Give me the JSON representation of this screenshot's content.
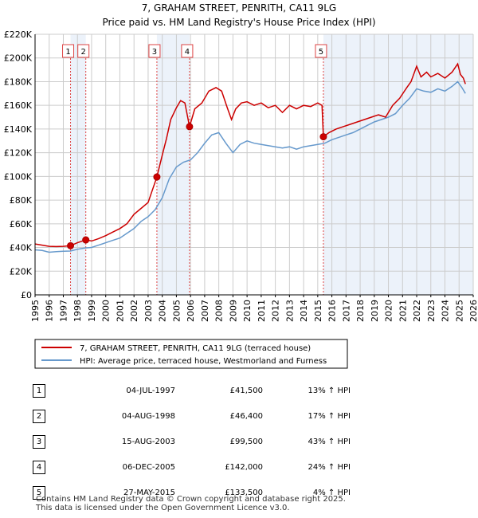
{
  "chart_data": {
    "type": "line",
    "title": "7, GRAHAM STREET, PENRITH, CA11 9LG",
    "subtitle": "Price paid vs. HM Land Registry's House Price Index (HPI)",
    "xlim": [
      1995,
      2026
    ],
    "ylim": [
      0,
      220000
    ],
    "x_ticks": [
      "1995",
      "1996",
      "1997",
      "1998",
      "1999",
      "2000",
      "2001",
      "2002",
      "2003",
      "2004",
      "2005",
      "2006",
      "2007",
      "2008",
      "2009",
      "2010",
      "2011",
      "2012",
      "2013",
      "2014",
      "2015",
      "2016",
      "2017",
      "2018",
      "2019",
      "2020",
      "2021",
      "2022",
      "2023",
      "2024",
      "2025",
      "2026"
    ],
    "y_ticks": [
      {
        "value": 0,
        "label": "£0"
      },
      {
        "value": 20000,
        "label": "£20K"
      },
      {
        "value": 40000,
        "label": "£40K"
      },
      {
        "value": 60000,
        "label": "£60K"
      },
      {
        "value": 80000,
        "label": "£80K"
      },
      {
        "value": 100000,
        "label": "£100K"
      },
      {
        "value": 120000,
        "label": "£120K"
      },
      {
        "value": 140000,
        "label": "£140K"
      },
      {
        "value": 160000,
        "label": "£160K"
      },
      {
        "value": 180000,
        "label": "£180K"
      },
      {
        "value": 200000,
        "label": "£200K"
      },
      {
        "value": 220000,
        "label": "£220K"
      }
    ],
    "grid": true,
    "colors": {
      "property": "#cc0000",
      "hpi": "#6699cc",
      "marker_line": "#dd4444",
      "shade": "#dde8f5",
      "grid": "#cccccc"
    },
    "shaded_periods": [
      [
        1997.51,
        1998.59
      ],
      [
        2003.62,
        2005.93
      ],
      [
        2015.4,
        2026.0
      ]
    ],
    "series": [
      {
        "name": "7, GRAHAM STREET, PENRITH, CA11 9LG (terraced house)",
        "points": [
          [
            1995.0,
            43000
          ],
          [
            1995.5,
            42000
          ],
          [
            1996.0,
            41000
          ],
          [
            1996.5,
            40800
          ],
          [
            1997.0,
            41000
          ],
          [
            1997.51,
            41500
          ],
          [
            1998.0,
            44000
          ],
          [
            1998.59,
            46400
          ],
          [
            1999.0,
            45500
          ],
          [
            1999.5,
            47500
          ],
          [
            2000.0,
            50000
          ],
          [
            2000.5,
            53000
          ],
          [
            2001.0,
            56000
          ],
          [
            2001.5,
            60000
          ],
          [
            2002.0,
            68000
          ],
          [
            2002.5,
            73000
          ],
          [
            2003.0,
            78000
          ],
          [
            2003.62,
            99500
          ],
          [
            2004.0,
            118000
          ],
          [
            2004.3,
            132000
          ],
          [
            2004.6,
            148000
          ],
          [
            2005.0,
            158000
          ],
          [
            2005.3,
            164000
          ],
          [
            2005.6,
            162000
          ],
          [
            2005.93,
            142000
          ],
          [
            2006.3,
            157000
          ],
          [
            2006.8,
            162000
          ],
          [
            2007.3,
            172000
          ],
          [
            2007.8,
            175000
          ],
          [
            2008.2,
            172000
          ],
          [
            2008.6,
            158000
          ],
          [
            2008.9,
            148000
          ],
          [
            2009.2,
            157000
          ],
          [
            2009.6,
            162000
          ],
          [
            2010.0,
            163000
          ],
          [
            2010.5,
            160000
          ],
          [
            2011.0,
            162000
          ],
          [
            2011.5,
            158000
          ],
          [
            2012.0,
            160000
          ],
          [
            2012.5,
            154000
          ],
          [
            2013.0,
            160000
          ],
          [
            2013.5,
            157000
          ],
          [
            2014.0,
            160000
          ],
          [
            2014.5,
            159000
          ],
          [
            2015.0,
            162000
          ],
          [
            2015.3,
            160000
          ],
          [
            2015.4,
            133500
          ],
          [
            2015.8,
            137000
          ],
          [
            2016.3,
            140000
          ],
          [
            2016.8,
            142000
          ],
          [
            2017.3,
            144000
          ],
          [
            2017.8,
            146000
          ],
          [
            2018.3,
            148000
          ],
          [
            2018.8,
            150000
          ],
          [
            2019.3,
            152000
          ],
          [
            2019.8,
            150000
          ],
          [
            2020.3,
            160000
          ],
          [
            2020.8,
            166000
          ],
          [
            2021.3,
            175000
          ],
          [
            2021.6,
            180000
          ],
          [
            2022.0,
            193000
          ],
          [
            2022.3,
            184000
          ],
          [
            2022.7,
            188000
          ],
          [
            2023.0,
            184000
          ],
          [
            2023.5,
            187000
          ],
          [
            2024.0,
            183000
          ],
          [
            2024.5,
            188000
          ],
          [
            2024.9,
            195000
          ],
          [
            2025.1,
            186000
          ],
          [
            2025.3,
            183000
          ],
          [
            2025.45,
            178000
          ]
        ]
      },
      {
        "name": "HPI: Average price, terraced house, Westmorland and Furness",
        "points": [
          [
            1995.0,
            38000
          ],
          [
            1995.5,
            37500
          ],
          [
            1996.0,
            36000
          ],
          [
            1996.5,
            36500
          ],
          [
            1997.0,
            36800
          ],
          [
            1997.5,
            37000
          ],
          [
            1998.0,
            38500
          ],
          [
            1998.5,
            39500
          ],
          [
            1999.0,
            40000
          ],
          [
            1999.5,
            42000
          ],
          [
            2000.0,
            44000
          ],
          [
            2000.5,
            46000
          ],
          [
            2001.0,
            48000
          ],
          [
            2001.5,
            52000
          ],
          [
            2002.0,
            56000
          ],
          [
            2002.5,
            62000
          ],
          [
            2003.0,
            66000
          ],
          [
            2003.5,
            72000
          ],
          [
            2004.0,
            82000
          ],
          [
            2004.5,
            98000
          ],
          [
            2005.0,
            108000
          ],
          [
            2005.5,
            112000
          ],
          [
            2006.0,
            114000
          ],
          [
            2006.5,
            120000
          ],
          [
            2007.0,
            128000
          ],
          [
            2007.5,
            135000
          ],
          [
            2008.0,
            137000
          ],
          [
            2008.5,
            128000
          ],
          [
            2009.0,
            120000
          ],
          [
            2009.5,
            127000
          ],
          [
            2010.0,
            130000
          ],
          [
            2010.5,
            128000
          ],
          [
            2011.0,
            127000
          ],
          [
            2011.5,
            126000
          ],
          [
            2012.0,
            125000
          ],
          [
            2012.5,
            124000
          ],
          [
            2013.0,
            125000
          ],
          [
            2013.5,
            123000
          ],
          [
            2014.0,
            125000
          ],
          [
            2014.5,
            126000
          ],
          [
            2015.0,
            127000
          ],
          [
            2015.5,
            128000
          ],
          [
            2016.0,
            131000
          ],
          [
            2016.5,
            133000
          ],
          [
            2017.0,
            135000
          ],
          [
            2017.5,
            137000
          ],
          [
            2018.0,
            140000
          ],
          [
            2018.5,
            143000
          ],
          [
            2019.0,
            146000
          ],
          [
            2019.5,
            148000
          ],
          [
            2020.0,
            150000
          ],
          [
            2020.5,
            153000
          ],
          [
            2021.0,
            160000
          ],
          [
            2021.5,
            166000
          ],
          [
            2022.0,
            174000
          ],
          [
            2022.5,
            172000
          ],
          [
            2023.0,
            171000
          ],
          [
            2023.5,
            174000
          ],
          [
            2024.0,
            172000
          ],
          [
            2024.5,
            176000
          ],
          [
            2024.9,
            180000
          ],
          [
            2025.2,
            175000
          ],
          [
            2025.45,
            170000
          ]
        ]
      }
    ],
    "sales": [
      {
        "num": "1",
        "x": 1997.51,
        "price": 41500
      },
      {
        "num": "2",
        "x": 1998.59,
        "price": 46400
      },
      {
        "num": "3",
        "x": 2003.62,
        "price": 99500
      },
      {
        "num": "4",
        "x": 2005.93,
        "price": 142000
      },
      {
        "num": "5",
        "x": 2015.4,
        "price": 133500
      }
    ],
    "legend": {
      "placement": "bottom",
      "items": [
        {
          "label": "7, GRAHAM STREET, PENRITH, CA11 9LG (terraced house)",
          "color": "#cc0000"
        },
        {
          "label": "HPI: Average price, terraced house, Westmorland and Furness",
          "color": "#6699cc"
        }
      ]
    }
  },
  "table": {
    "rows": [
      {
        "num": "1",
        "date": "04-JUL-1997",
        "price": "£41,500",
        "hpi": "13% ↑ HPI"
      },
      {
        "num": "2",
        "date": "04-AUG-1998",
        "price": "£46,400",
        "hpi": "17% ↑ HPI"
      },
      {
        "num": "3",
        "date": "15-AUG-2003",
        "price": "£99,500",
        "hpi": "43% ↑ HPI"
      },
      {
        "num": "4",
        "date": "06-DEC-2005",
        "price": "£142,000",
        "hpi": "24% ↑ HPI"
      },
      {
        "num": "5",
        "date": "27-MAY-2015",
        "price": "£133,500",
        "hpi": "4% ↑ HPI"
      }
    ]
  },
  "footer": {
    "line1": "Contains HM Land Registry data © Crown copyright and database right 2025.",
    "line2": "This data is licensed under the Open Government Licence v3.0."
  }
}
